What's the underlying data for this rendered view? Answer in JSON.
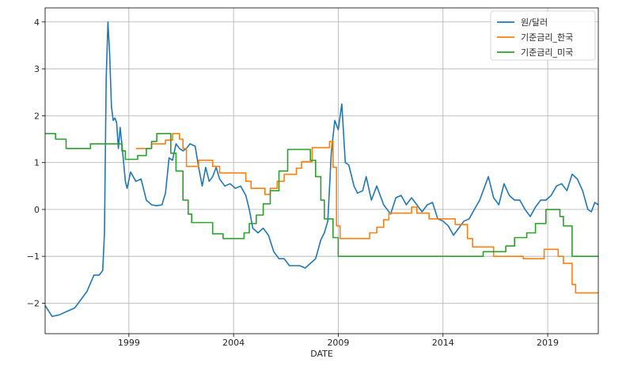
{
  "chart_data": {
    "type": "line",
    "title": "",
    "xlabel": "DATE",
    "ylabel": "",
    "xlim": [
      "1995-01",
      "2021-06"
    ],
    "ylim": [
      -2.65,
      4.3
    ],
    "grid": true,
    "legend_position": "top-right",
    "x_ticks": [
      {
        "date": "1999-01",
        "label": "1999"
      },
      {
        "date": "2004-01",
        "label": "2004"
      },
      {
        "date": "2009-01",
        "label": "2009"
      },
      {
        "date": "2014-01",
        "label": "2014"
      },
      {
        "date": "2019-01",
        "label": "2019"
      }
    ],
    "y_ticks": [
      {
        "value": 4,
        "label": "4"
      },
      {
        "value": 3,
        "label": "3"
      },
      {
        "value": 2,
        "label": "2"
      },
      {
        "value": 1,
        "label": "1"
      },
      {
        "value": 0,
        "label": "0"
      },
      {
        "value": -1,
        "label": "−1"
      },
      {
        "value": -2,
        "label": "−2"
      }
    ],
    "series": [
      {
        "name": "원/달러",
        "color": "#1f77b4",
        "points": [
          [
            "1995-01",
            -2.05
          ],
          [
            "1995-05",
            -2.28
          ],
          [
            "1995-09",
            -2.25
          ],
          [
            "1995-12",
            -2.2
          ],
          [
            "1996-03",
            -2.15
          ],
          [
            "1996-06",
            -2.1
          ],
          [
            "1996-09",
            -1.95
          ],
          [
            "1997-01",
            -1.75
          ],
          [
            "1997-05",
            -1.4
          ],
          [
            "1997-08",
            -1.4
          ],
          [
            "1997-10",
            -1.3
          ],
          [
            "1997-11",
            -0.5
          ],
          [
            "1997-12",
            2.8
          ],
          [
            "1998-01",
            4.0
          ],
          [
            "1998-02",
            3.3
          ],
          [
            "1998-03",
            2.2
          ],
          [
            "1998-04",
            1.9
          ],
          [
            "1998-05",
            1.95
          ],
          [
            "1998-06",
            1.85
          ],
          [
            "1998-07",
            1.3
          ],
          [
            "1998-08",
            1.75
          ],
          [
            "1998-09",
            1.4
          ],
          [
            "1998-10",
            1.0
          ],
          [
            "1998-11",
            0.6
          ],
          [
            "1998-12",
            0.45
          ],
          [
            "1999-02",
            0.8
          ],
          [
            "1999-05",
            0.6
          ],
          [
            "1999-08",
            0.65
          ],
          [
            "1999-11",
            0.2
          ],
          [
            "2000-02",
            0.1
          ],
          [
            "2000-05",
            0.08
          ],
          [
            "2000-08",
            0.1
          ],
          [
            "2000-10",
            0.35
          ],
          [
            "2000-12",
            1.1
          ],
          [
            "2001-02",
            1.05
          ],
          [
            "2001-04",
            1.4
          ],
          [
            "2001-06",
            1.3
          ],
          [
            "2001-08",
            1.25
          ],
          [
            "2001-10",
            1.3
          ],
          [
            "2001-12",
            1.4
          ],
          [
            "2002-03",
            1.35
          ],
          [
            "2002-05",
            0.9
          ],
          [
            "2002-07",
            0.5
          ],
          [
            "2002-09",
            0.9
          ],
          [
            "2002-11",
            0.6
          ],
          [
            "2003-01",
            0.7
          ],
          [
            "2003-03",
            0.9
          ],
          [
            "2003-05",
            0.65
          ],
          [
            "2003-08",
            0.5
          ],
          [
            "2003-11",
            0.55
          ],
          [
            "2004-02",
            0.45
          ],
          [
            "2004-05",
            0.5
          ],
          [
            "2004-08",
            0.3
          ],
          [
            "2004-10",
            0.0
          ],
          [
            "2004-12",
            -0.4
          ],
          [
            "2005-03",
            -0.5
          ],
          [
            "2005-06",
            -0.4
          ],
          [
            "2005-09",
            -0.55
          ],
          [
            "2005-12",
            -0.9
          ],
          [
            "2006-03",
            -1.05
          ],
          [
            "2006-06",
            -1.05
          ],
          [
            "2006-09",
            -1.2
          ],
          [
            "2006-12",
            -1.2
          ],
          [
            "2007-03",
            -1.2
          ],
          [
            "2007-06",
            -1.25
          ],
          [
            "2007-09",
            -1.15
          ],
          [
            "2007-12",
            -1.05
          ],
          [
            "2008-03",
            -0.65
          ],
          [
            "2008-05",
            -0.5
          ],
          [
            "2008-07",
            -0.25
          ],
          [
            "2008-09",
            1.2
          ],
          [
            "2008-11",
            1.9
          ],
          [
            "2009-01",
            1.7
          ],
          [
            "2009-03",
            2.25
          ],
          [
            "2009-05",
            1.0
          ],
          [
            "2009-07",
            0.95
          ],
          [
            "2009-10",
            0.5
          ],
          [
            "2009-12",
            0.35
          ],
          [
            "2010-03",
            0.4
          ],
          [
            "2010-05",
            0.7
          ],
          [
            "2010-08",
            0.2
          ],
          [
            "2010-11",
            0.5
          ],
          [
            "2011-03",
            0.1
          ],
          [
            "2011-07",
            -0.1
          ],
          [
            "2011-10",
            0.25
          ],
          [
            "2012-01",
            0.3
          ],
          [
            "2012-04",
            0.1
          ],
          [
            "2012-07",
            0.25
          ],
          [
            "2012-10",
            0.1
          ],
          [
            "2013-01",
            -0.05
          ],
          [
            "2013-04",
            0.1
          ],
          [
            "2013-07",
            0.15
          ],
          [
            "2013-10",
            -0.2
          ],
          [
            "2014-01",
            -0.25
          ],
          [
            "2014-04",
            -0.35
          ],
          [
            "2014-07",
            -0.55
          ],
          [
            "2014-10",
            -0.4
          ],
          [
            "2015-01",
            -0.25
          ],
          [
            "2015-04",
            -0.2
          ],
          [
            "2015-07",
            0.0
          ],
          [
            "2015-10",
            0.2
          ],
          [
            "2016-01",
            0.5
          ],
          [
            "2016-03",
            0.7
          ],
          [
            "2016-06",
            0.25
          ],
          [
            "2016-09",
            0.1
          ],
          [
            "2016-12",
            0.55
          ],
          [
            "2017-03",
            0.3
          ],
          [
            "2017-06",
            0.2
          ],
          [
            "2017-09",
            0.2
          ],
          [
            "2017-12",
            0.0
          ],
          [
            "2018-03",
            -0.15
          ],
          [
            "2018-06",
            0.05
          ],
          [
            "2018-09",
            0.2
          ],
          [
            "2018-12",
            0.2
          ],
          [
            "2019-03",
            0.3
          ],
          [
            "2019-06",
            0.5
          ],
          [
            "2019-09",
            0.55
          ],
          [
            "2019-12",
            0.4
          ],
          [
            "2020-03",
            0.75
          ],
          [
            "2020-06",
            0.65
          ],
          [
            "2020-09",
            0.4
          ],
          [
            "2020-12",
            0.0
          ],
          [
            "2021-02",
            -0.05
          ],
          [
            "2021-04",
            0.15
          ],
          [
            "2021-06",
            0.1
          ]
        ]
      },
      {
        "name": "기준금리_한국",
        "color": "#ff7f0e",
        "steps": [
          [
            "1999-05",
            1.3
          ],
          [
            "2000-02",
            1.4
          ],
          [
            "2000-10",
            1.48
          ],
          [
            "2001-02",
            1.62
          ],
          [
            "2001-06",
            1.5
          ],
          [
            "2001-08",
            1.3
          ],
          [
            "2001-10",
            0.92
          ],
          [
            "2002-05",
            1.05
          ],
          [
            "2003-01",
            0.92
          ],
          [
            "2003-05",
            0.78
          ],
          [
            "2004-08",
            0.6
          ],
          [
            "2004-11",
            0.45
          ],
          [
            "2005-07",
            0.32
          ],
          [
            "2005-10",
            0.45
          ],
          [
            "2006-02",
            0.6
          ],
          [
            "2006-06",
            0.75
          ],
          [
            "2007-01",
            0.88
          ],
          [
            "2007-04",
            1.02
          ],
          [
            "2007-10",
            1.32
          ],
          [
            "2008-08",
            1.45
          ],
          [
            "2008-10",
            0.9
          ],
          [
            "2008-12",
            -0.35
          ],
          [
            "2009-02",
            -0.62
          ],
          [
            "2010-07",
            -0.5
          ],
          [
            "2010-11",
            -0.38
          ],
          [
            "2011-03",
            -0.22
          ],
          [
            "2011-06",
            -0.08
          ],
          [
            "2012-07",
            0.05
          ],
          [
            "2012-10",
            -0.08
          ],
          [
            "2013-05",
            -0.2
          ],
          [
            "2014-08",
            -0.32
          ],
          [
            "2015-03",
            -0.62
          ],
          [
            "2015-06",
            -0.8
          ],
          [
            "2016-06",
            -1.0
          ],
          [
            "2017-11",
            -1.05
          ],
          [
            "2018-11",
            -0.85
          ],
          [
            "2019-07",
            -1.0
          ],
          [
            "2019-10",
            -1.15
          ],
          [
            "2020-03",
            -1.6
          ],
          [
            "2020-05",
            -1.78
          ]
        ]
      },
      {
        "name": "기준금리_미국",
        "color": "#2ca02c",
        "steps": [
          [
            "1995-01",
            1.62
          ],
          [
            "1995-07",
            1.5
          ],
          [
            "1996-01",
            1.3
          ],
          [
            "1997-03",
            1.4
          ],
          [
            "1998-09",
            1.25
          ],
          [
            "1998-11",
            1.07
          ],
          [
            "1999-06",
            1.15
          ],
          [
            "1999-11",
            1.3
          ],
          [
            "2000-02",
            1.45
          ],
          [
            "2000-05",
            1.62
          ],
          [
            "2001-01",
            1.2
          ],
          [
            "2001-04",
            0.82
          ],
          [
            "2001-08",
            0.2
          ],
          [
            "2001-11",
            -0.1
          ],
          [
            "2002-01",
            -0.28
          ],
          [
            "2003-01",
            -0.52
          ],
          [
            "2003-07",
            -0.62
          ],
          [
            "2004-07",
            -0.5
          ],
          [
            "2004-10",
            -0.3
          ],
          [
            "2005-02",
            -0.12
          ],
          [
            "2005-06",
            0.12
          ],
          [
            "2005-10",
            0.4
          ],
          [
            "2006-03",
            0.82
          ],
          [
            "2006-08",
            1.28
          ],
          [
            "2007-09",
            1.05
          ],
          [
            "2007-12",
            0.7
          ],
          [
            "2008-03",
            0.2
          ],
          [
            "2008-05",
            -0.2
          ],
          [
            "2008-10",
            -0.6
          ],
          [
            "2009-01",
            -1.0
          ],
          [
            "2015-12",
            -0.9
          ],
          [
            "2017-01",
            -0.78
          ],
          [
            "2017-06",
            -0.6
          ],
          [
            "2018-01",
            -0.5
          ],
          [
            "2018-06",
            -0.3
          ],
          [
            "2018-12",
            0.0
          ],
          [
            "2019-08",
            -0.15
          ],
          [
            "2019-10",
            -0.35
          ],
          [
            "2020-03",
            -1.0
          ],
          [
            "2021-06",
            -1.0
          ]
        ]
      }
    ]
  }
}
